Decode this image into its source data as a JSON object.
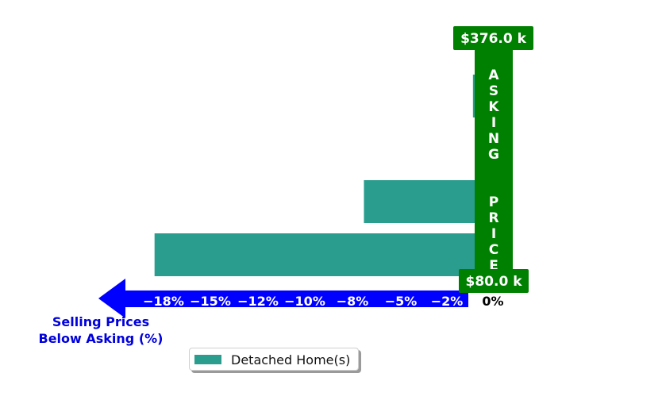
{
  "chart_data": {
    "type": "bar",
    "orientation": "horizontal",
    "categories": [
      "row-1",
      "row-2",
      "row-3"
    ],
    "series": [
      {
        "name": "Detached Home(s)",
        "values": [
          -18.5,
          -6.4,
          -0.1
        ],
        "color": "#2a9d8f"
      }
    ],
    "xticks": [
      "−18%",
      "−15%",
      "−12%",
      "−10%",
      "−8%",
      "−5%",
      "−2%",
      "0%"
    ],
    "xtick_values": [
      -18,
      -15,
      -12,
      -10,
      -8,
      -5,
      -2,
      0
    ],
    "xlabel": "Selling Prices\nBelow Asking (%)",
    "asking_price_label": "ASKING  PRICE",
    "asking_price_max": "$376.0 k",
    "asking_price_min": "$80.0 k",
    "legend_position": "bottom-center",
    "colors": {
      "bar": "#2a9d8f",
      "axis_arrow": "#0000ff",
      "asking_column": "#008000",
      "xlabel": "#0000dd"
    }
  }
}
